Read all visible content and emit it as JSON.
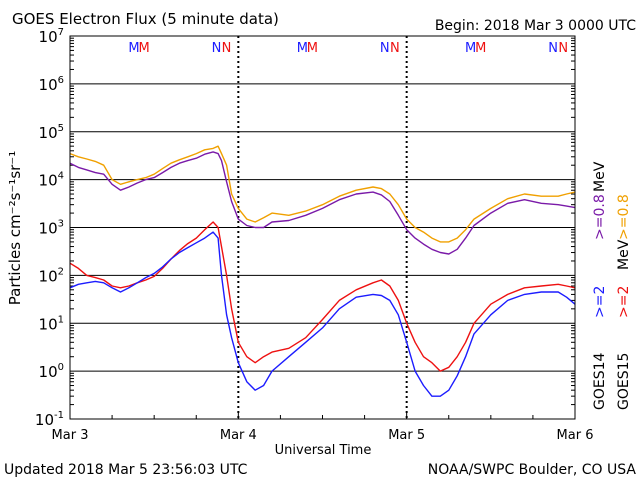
{
  "chart_data": {
    "type": "line",
    "title": "GOES Electron Flux (5 minute data)",
    "begin": "Begin: 2018 Mar 3 0000 UTC",
    "xlabel": "Universal Time",
    "ylabel": "Particles cm⁻²s⁻¹sr⁻¹",
    "x_ticks": [
      "Mar 3",
      "Mar 4",
      "Mar 5",
      "Mar 6"
    ],
    "x_range_days": [
      0,
      3
    ],
    "y_scale": "log",
    "ylim": [
      0.1,
      10000000
    ],
    "y_ticks": [
      {
        "base": "10",
        "exp": "-1",
        "value": 0.1
      },
      {
        "base": "10",
        "exp": "0",
        "value": 1
      },
      {
        "base": "10",
        "exp": "1",
        "value": 10
      },
      {
        "base": "10",
        "exp": "2",
        "value": 100
      },
      {
        "base": "10",
        "exp": "3",
        "value": 1000
      },
      {
        "base": "10",
        "exp": "4",
        "value": 10000
      },
      {
        "base": "10",
        "exp": "5",
        "value": 100000
      },
      {
        "base": "10",
        "exp": "6",
        "value": 1000000
      },
      {
        "base": "10",
        "exp": "7",
        "value": 10000000
      }
    ],
    "threshold": 1000,
    "markers": [
      {
        "day": 0.38,
        "label": "M",
        "color": "#1c1cff"
      },
      {
        "day": 0.44,
        "label": "M",
        "color": "#ee1111"
      },
      {
        "day": 0.87,
        "label": "N",
        "color": "#1c1cff"
      },
      {
        "day": 0.93,
        "label": "N",
        "color": "#ee1111"
      },
      {
        "day": 1.38,
        "label": "M",
        "color": "#1c1cff"
      },
      {
        "day": 1.44,
        "label": "M",
        "color": "#ee1111"
      },
      {
        "day": 1.87,
        "label": "N",
        "color": "#1c1cff"
      },
      {
        "day": 1.93,
        "label": "N",
        "color": "#ee1111"
      },
      {
        "day": 2.38,
        "label": "M",
        "color": "#1c1cff"
      },
      {
        "day": 2.44,
        "label": "M",
        "color": "#ee1111"
      },
      {
        "day": 2.87,
        "label": "N",
        "color": "#1c1cff"
      },
      {
        "day": 2.93,
        "label": "N",
        "color": "#ee1111"
      }
    ],
    "series": [
      {
        "name": "GOES15 >=0.8 MeV",
        "color": "#f0a000",
        "x": [
          0,
          0.05,
          0.1,
          0.15,
          0.2,
          0.25,
          0.3,
          0.35,
          0.4,
          0.45,
          0.5,
          0.55,
          0.6,
          0.65,
          0.7,
          0.75,
          0.8,
          0.85,
          0.88,
          0.9,
          0.93,
          0.96,
          1.0,
          1.05,
          1.1,
          1.15,
          1.2,
          1.3,
          1.4,
          1.5,
          1.6,
          1.7,
          1.8,
          1.85,
          1.9,
          1.95,
          2.0,
          2.05,
          2.1,
          2.15,
          2.2,
          2.25,
          2.3,
          2.35,
          2.4,
          2.5,
          2.6,
          2.7,
          2.8,
          2.9,
          2.95,
          3.0
        ],
        "y": [
          35000,
          30000,
          27000,
          24000,
          20000,
          10000,
          8000,
          9000,
          10000,
          11000,
          13000,
          17000,
          22000,
          26000,
          30000,
          35000,
          42000,
          45000,
          50000,
          35000,
          20000,
          5000,
          2500,
          1500,
          1300,
          1600,
          2000,
          1800,
          2200,
          3000,
          4500,
          6000,
          7000,
          6500,
          5000,
          3000,
          1500,
          1000,
          800,
          600,
          500,
          500,
          600,
          900,
          1500,
          2500,
          4000,
          5000,
          4500,
          4500,
          5000,
          5500
        ]
      },
      {
        "name": "GOES14 >=0.8 MeV",
        "color": "#7a1aa8",
        "x": [
          0,
          0.05,
          0.1,
          0.15,
          0.2,
          0.25,
          0.3,
          0.35,
          0.4,
          0.45,
          0.5,
          0.55,
          0.6,
          0.65,
          0.7,
          0.75,
          0.8,
          0.85,
          0.88,
          0.9,
          0.93,
          0.96,
          1.0,
          1.05,
          1.1,
          1.15,
          1.2,
          1.3,
          1.4,
          1.5,
          1.6,
          1.7,
          1.8,
          1.85,
          1.9,
          1.95,
          2.0,
          2.05,
          2.1,
          2.15,
          2.2,
          2.25,
          2.3,
          2.35,
          2.4,
          2.5,
          2.6,
          2.7,
          2.8,
          2.9,
          2.95,
          3.0
        ],
        "y": [
          22000,
          18000,
          16000,
          14000,
          13000,
          8000,
          6000,
          7000,
          8500,
          10000,
          11000,
          14000,
          18000,
          22000,
          25000,
          28000,
          34000,
          38000,
          35000,
          25000,
          9000,
          3500,
          1500,
          1100,
          1000,
          1000,
          1300,
          1400,
          1800,
          2500,
          3800,
          5000,
          5500,
          4800,
          3500,
          1800,
          900,
          600,
          450,
          350,
          300,
          280,
          350,
          600,
          1100,
          2000,
          3200,
          3800,
          3200,
          3000,
          2800,
          2600
        ]
      },
      {
        "name": "GOES15 >=2 MeV",
        "color": "#ee1111",
        "x": [
          0,
          0.05,
          0.1,
          0.15,
          0.2,
          0.25,
          0.3,
          0.35,
          0.4,
          0.45,
          0.5,
          0.55,
          0.6,
          0.65,
          0.7,
          0.75,
          0.8,
          0.85,
          0.88,
          0.9,
          0.93,
          0.96,
          1.0,
          1.05,
          1.1,
          1.15,
          1.2,
          1.3,
          1.4,
          1.5,
          1.6,
          1.7,
          1.8,
          1.85,
          1.9,
          1.95,
          2.0,
          2.05,
          2.1,
          2.15,
          2.2,
          2.25,
          2.3,
          2.35,
          2.4,
          2.5,
          2.6,
          2.7,
          2.8,
          2.9,
          2.95,
          3.0
        ],
        "y": [
          180,
          140,
          100,
          90,
          80,
          60,
          55,
          60,
          70,
          80,
          95,
          140,
          220,
          330,
          460,
          600,
          900,
          1300,
          1000,
          400,
          100,
          20,
          4,
          2,
          1.5,
          2,
          2.5,
          3,
          5,
          12,
          30,
          50,
          70,
          80,
          60,
          30,
          10,
          4,
          2,
          1.5,
          1,
          1.2,
          2,
          4,
          10,
          25,
          40,
          55,
          60,
          65,
          60,
          55
        ]
      },
      {
        "name": "GOES14 >=2 MeV",
        "color": "#1c1cff",
        "x": [
          0,
          0.05,
          0.1,
          0.15,
          0.2,
          0.25,
          0.3,
          0.35,
          0.4,
          0.45,
          0.5,
          0.55,
          0.6,
          0.65,
          0.7,
          0.75,
          0.8,
          0.85,
          0.88,
          0.9,
          0.93,
          0.96,
          1.0,
          1.05,
          1.1,
          1.15,
          1.2,
          1.3,
          1.4,
          1.5,
          1.6,
          1.7,
          1.8,
          1.85,
          1.9,
          1.95,
          2.0,
          2.05,
          2.1,
          2.15,
          2.2,
          2.25,
          2.3,
          2.35,
          2.4,
          2.5,
          2.6,
          2.7,
          2.8,
          2.9,
          2.95,
          3.0
        ],
        "y": [
          55,
          65,
          70,
          75,
          70,
          55,
          45,
          55,
          70,
          90,
          110,
          150,
          220,
          300,
          380,
          480,
          600,
          800,
          600,
          100,
          15,
          5,
          1.5,
          0.6,
          0.4,
          0.5,
          1,
          2,
          4,
          8,
          20,
          35,
          40,
          38,
          30,
          15,
          4,
          1,
          0.5,
          0.3,
          0.3,
          0.4,
          0.8,
          2,
          6,
          15,
          30,
          40,
          45,
          45,
          35,
          25
        ]
      }
    ]
  },
  "footer": {
    "updated": "Updated 2018 Mar  5 23:56:03 UTC",
    "credit": "NOAA/SWPC Boulder, CO USA"
  },
  "side_legend": {
    "goes15": "GOES15",
    "goes14": "GOES14",
    "red_2": ">=2",
    "blue_2": ">=2",
    "orange_08": ">=0.8",
    "purple_08": ">=0.8",
    "mev_bottom": "MeV",
    "mev_top": "MeV"
  }
}
